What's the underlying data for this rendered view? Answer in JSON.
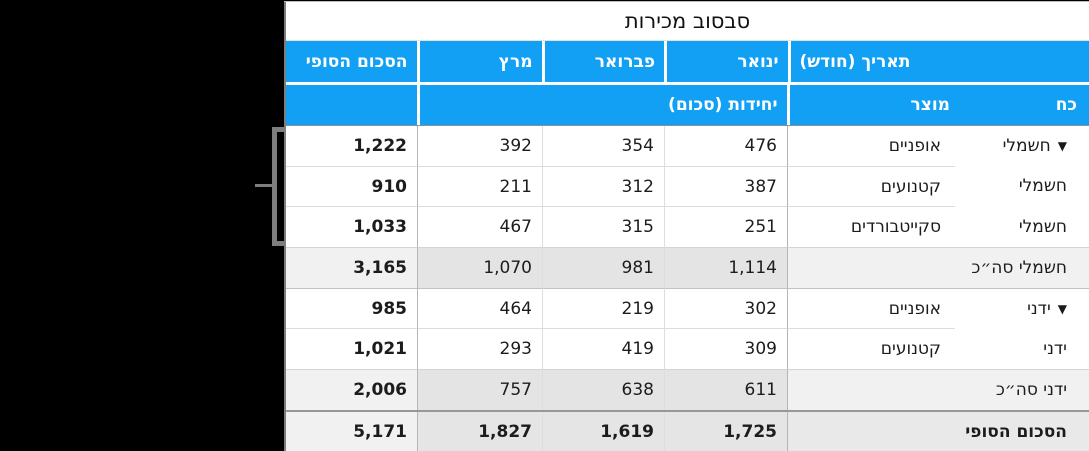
{
  "title": "סבסוב מכירות",
  "header": {
    "final_total": "הסכום הסופי",
    "march": "מרץ",
    "february": "פברואר",
    "january": "ינואר",
    "date_month": "תאריך (חודש)",
    "units_sum": "יחידות (סכום)",
    "product": "מוצר",
    "power": "כח"
  },
  "icons": {
    "disclosure": "▼"
  },
  "rows": [
    {
      "group": "חשמלי",
      "product": "אופניים",
      "jan": "476",
      "feb": "354",
      "mar": "392",
      "total": "1,222"
    },
    {
      "group": "חשמלי",
      "product": "קטנועים",
      "jan": "387",
      "feb": "312",
      "mar": "211",
      "total": "910"
    },
    {
      "group": "חשמלי",
      "product": "סקייטבורדים",
      "jan": "251",
      "feb": "315",
      "mar": "467",
      "total": "1,033"
    },
    {
      "label": "חשמלי סה״כ",
      "jan": "1,114",
      "feb": "981",
      "mar": "1,070",
      "total": "3,165"
    },
    {
      "group": "ידני",
      "product": "אופניים",
      "jan": "302",
      "feb": "219",
      "mar": "464",
      "total": "985"
    },
    {
      "group": "ידני",
      "product": "קטנועים",
      "jan": "309",
      "feb": "419",
      "mar": "293",
      "total": "1,021"
    },
    {
      "label": "ידני סה״כ",
      "jan": "611",
      "feb": "638",
      "mar": "757",
      "total": "2,006"
    },
    {
      "label": "הסכום הסופי",
      "jan": "1,725",
      "feb": "1,619",
      "mar": "1,827",
      "total": "5,171"
    }
  ],
  "colors": {
    "header_blue": "#12a0f4",
    "canvas_black": "#000000",
    "subtotal_month_bg": "#e4e4e4",
    "subtotal_label_bg": "#f1f1f1",
    "grand_row_bg": "#e5e5e5",
    "grand_total_bg": "#f1f1f1"
  }
}
